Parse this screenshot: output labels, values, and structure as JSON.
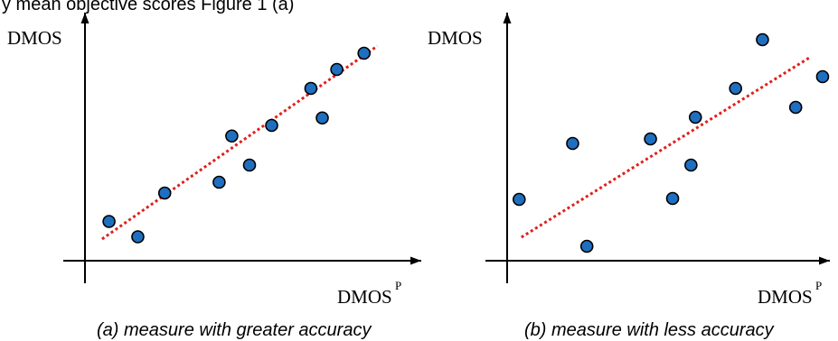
{
  "top_text": "y    mean objective scores         Figure 1 (a)",
  "chart_data": [
    {
      "type": "scatter",
      "caption": "(a) measure with greater accuracy",
      "ylabel": "DMOS",
      "xlabel": "DMOS",
      "xlabel_superscript": "P",
      "xlim": [
        0,
        100
      ],
      "ylim": [
        0,
        100
      ],
      "grid": false,
      "point_color": "#1f6fc0",
      "trend_color": "#e0201c",
      "points": [
        {
          "x": 7.6,
          "y": 17.4
        },
        {
          "x": 16.7,
          "y": 10.6
        },
        {
          "x": 25.2,
          "y": 30.0
        },
        {
          "x": 42.4,
          "y": 34.8
        },
        {
          "x": 46.4,
          "y": 55.3
        },
        {
          "x": 52.0,
          "y": 42.4
        },
        {
          "x": 59.0,
          "y": 60.0
        },
        {
          "x": 71.4,
          "y": 76.4
        },
        {
          "x": 75.0,
          "y": 63.3
        },
        {
          "x": 79.6,
          "y": 84.8
        },
        {
          "x": 88.2,
          "y": 92.0
        }
      ],
      "trend": {
        "x": [
          5.4,
          92.4
        ],
        "y": [
          9.6,
          95.2
        ]
      }
    },
    {
      "type": "scatter",
      "caption": "(b) measure with less accuracy",
      "ylabel": "DMOS",
      "xlabel": "DMOS",
      "xlabel_superscript": "P",
      "xlim": [
        0,
        100
      ],
      "ylim": [
        0,
        100
      ],
      "grid": false,
      "point_color": "#1f6fc0",
      "trend_color": "#e0201c",
      "points": [
        {
          "x": 3.8,
          "y": 27.2
        },
        {
          "x": 20.7,
          "y": 52.0
        },
        {
          "x": 25.2,
          "y": 6.4
        },
        {
          "x": 45.3,
          "y": 54.0
        },
        {
          "x": 52.3,
          "y": 27.6
        },
        {
          "x": 58.1,
          "y": 42.4
        },
        {
          "x": 59.5,
          "y": 63.6
        },
        {
          "x": 72.2,
          "y": 76.4
        },
        {
          "x": 80.7,
          "y": 98.0
        },
        {
          "x": 91.2,
          "y": 68.0
        },
        {
          "x": 99.7,
          "y": 81.6
        }
      ],
      "trend": {
        "x": [
          4.5,
          95.5
        ],
        "y": [
          10.4,
          90.0
        ]
      }
    }
  ]
}
